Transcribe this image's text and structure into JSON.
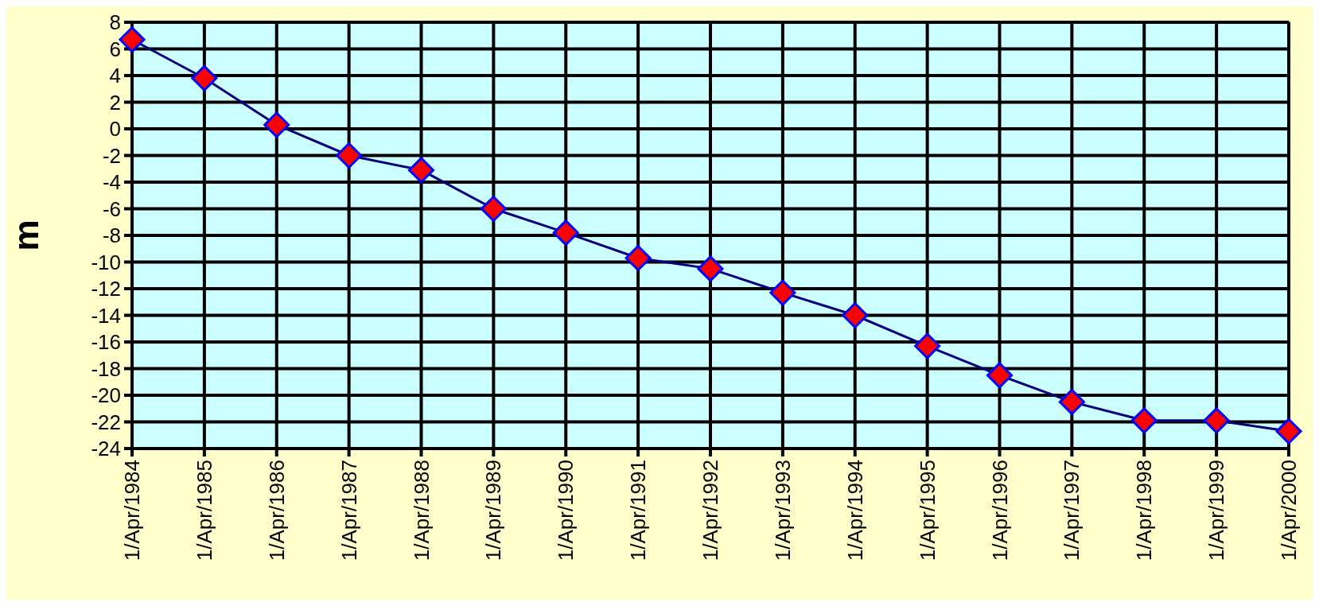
{
  "chart_data": {
    "type": "line",
    "ylabel": "m",
    "categories": [
      "1/Apr/1984",
      "1/Apr/1985",
      "1/Apr/1986",
      "1/Apr/1987",
      "1/Apr/1988",
      "1/Apr/1989",
      "1/Apr/1990",
      "1/Apr/1991",
      "1/Apr/1992",
      "1/Apr/1993",
      "1/Apr/1994",
      "1/Apr/1995",
      "1/Apr/1996",
      "1/Apr/1997",
      "1/Apr/1998",
      "1/Apr/1999",
      "1/Apr/2000"
    ],
    "series": [
      {
        "color": "#000080",
        "values": [
          6.7,
          3.8,
          0.3,
          -2.0,
          -3.1,
          -6.0,
          -7.8,
          -9.7,
          -10.5,
          -12.3,
          -14.0,
          -16.3,
          -18.5,
          -20.5,
          -21.9,
          -21.9,
          -22.7
        ]
      }
    ],
    "ylim": [
      -24,
      8
    ],
    "yticks": [
      -24,
      -22,
      -20,
      -18,
      -16,
      -14,
      -12,
      -10,
      -8,
      -6,
      -4,
      -2,
      0,
      2,
      4,
      6,
      8
    ],
    "grid": true,
    "marker": "diamond",
    "line_style": "solid"
  }
}
